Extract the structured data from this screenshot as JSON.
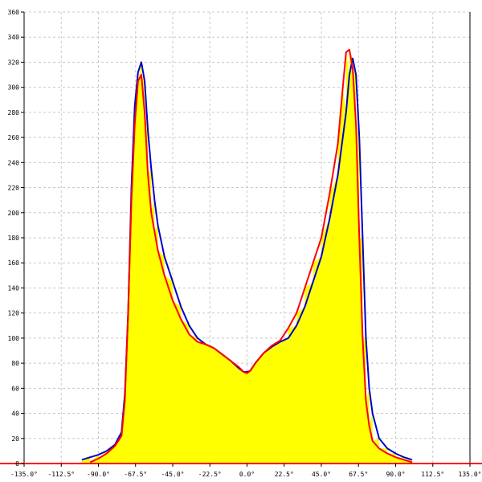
{
  "chart_data": {
    "type": "area",
    "title": "",
    "xlabel": "",
    "ylabel": "",
    "xlim": [
      -135,
      135
    ],
    "ylim": [
      0,
      360
    ],
    "grid": true,
    "x_ticks": [
      {
        "value": -135,
        "label": "-135.0°"
      },
      {
        "value": -112.5,
        "label": "-112.5°"
      },
      {
        "value": -90,
        "label": "-90.0°"
      },
      {
        "value": -67.5,
        "label": "-67.5°"
      },
      {
        "value": -45,
        "label": "-45.0°"
      },
      {
        "value": -22.5,
        "label": "-22.5°"
      },
      {
        "value": 0,
        "label": "0.0°"
      },
      {
        "value": 22.5,
        "label": "22.5°"
      },
      {
        "value": 45,
        "label": "45.0°"
      },
      {
        "value": 67.5,
        "label": "67.5°"
      },
      {
        "value": 90,
        "label": "90.0°"
      },
      {
        "value": 112.5,
        "label": "112.5°"
      },
      {
        "value": 135,
        "label": "135.0°"
      }
    ],
    "y_ticks": [
      {
        "value": 0,
        "label": "0"
      },
      {
        "value": 20,
        "label": "20"
      },
      {
        "value": 40,
        "label": "40"
      },
      {
        "value": 60,
        "label": "60"
      },
      {
        "value": 80,
        "label": "80"
      },
      {
        "value": 100,
        "label": "100"
      },
      {
        "value": 120,
        "label": "120"
      },
      {
        "value": 140,
        "label": "140"
      },
      {
        "value": 160,
        "label": "160"
      },
      {
        "value": 180,
        "label": "180"
      },
      {
        "value": 200,
        "label": "200"
      },
      {
        "value": 220,
        "label": "220"
      },
      {
        "value": 240,
        "label": "240"
      },
      {
        "value": 260,
        "label": "260"
      },
      {
        "value": 280,
        "label": "280"
      },
      {
        "value": 300,
        "label": "300"
      },
      {
        "value": 320,
        "label": "320"
      },
      {
        "value": 340,
        "label": "340"
      },
      {
        "value": 360,
        "label": "360"
      }
    ],
    "fill_color": "#ffff00",
    "series": [
      {
        "color": "#0000cc",
        "x": [
          -100,
          -95,
          -90,
          -85,
          -80,
          -76,
          -74,
          -72,
          -70,
          -68,
          -66,
          -64,
          -62,
          -60,
          -58,
          -56,
          -54,
          -50,
          -45,
          -40,
          -35,
          -30,
          -25,
          -20,
          -15,
          -10,
          -5,
          -2,
          0,
          2,
          5,
          10,
          15,
          20,
          25,
          30,
          35,
          40,
          45,
          50,
          55,
          60,
          62,
          64,
          66,
          68,
          70,
          72,
          74,
          76,
          80,
          85,
          90,
          95,
          100
        ],
        "y": [
          3,
          5,
          7,
          10,
          15,
          25,
          55,
          120,
          220,
          285,
          312,
          320,
          305,
          265,
          235,
          210,
          190,
          165,
          145,
          125,
          110,
          100,
          95,
          92,
          87,
          82,
          76,
          73,
          73,
          74,
          80,
          88,
          93,
          97,
          100,
          110,
          125,
          145,
          165,
          195,
          230,
          280,
          310,
          323,
          310,
          260,
          180,
          100,
          60,
          40,
          20,
          12,
          8,
          5,
          3
        ]
      },
      {
        "color": "#ff0000",
        "x": [
          -95,
          -90,
          -85,
          -80,
          -76,
          -74,
          -72,
          -70,
          -68,
          -66,
          -64,
          -62,
          -60,
          -58,
          -56,
          -54,
          -50,
          -45,
          -40,
          -35,
          -30,
          -25,
          -20,
          -15,
          -10,
          -5,
          -2,
          0,
          2,
          5,
          10,
          15,
          20,
          25,
          30,
          35,
          40,
          45,
          50,
          55,
          58,
          60,
          62,
          64,
          66,
          68,
          70,
          72,
          74,
          76,
          80,
          85,
          90,
          95,
          100
        ],
        "y": [
          1,
          4,
          8,
          14,
          22,
          50,
          120,
          210,
          270,
          305,
          310,
          280,
          230,
          200,
          185,
          170,
          150,
          130,
          115,
          103,
          97,
          95,
          92,
          87,
          82,
          77,
          73,
          72,
          74,
          80,
          88,
          94,
          98,
          108,
          120,
          140,
          160,
          180,
          215,
          255,
          300,
          328,
          330,
          315,
          270,
          180,
          100,
          50,
          30,
          18,
          12,
          8,
          5,
          3,
          1
        ]
      }
    ]
  }
}
